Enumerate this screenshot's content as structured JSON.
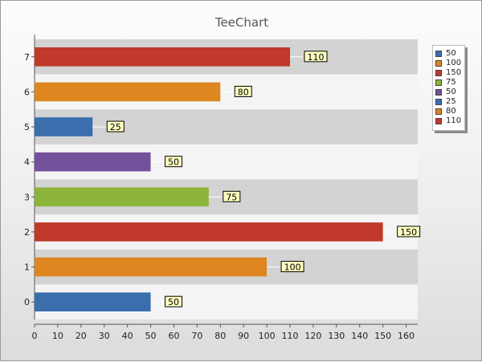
{
  "chart_data": {
    "type": "bar",
    "orientation": "horizontal",
    "title": "TeeChart",
    "xlabel": "",
    "ylabel": "",
    "categories": [
      "0",
      "1",
      "2",
      "3",
      "4",
      "5",
      "6",
      "7"
    ],
    "values": [
      50,
      100,
      150,
      75,
      50,
      25,
      80,
      110
    ],
    "bar_colors": [
      "#3a6ead",
      "#de861f",
      "#c0392b",
      "#8db43a",
      "#73529b",
      "#3a6ead",
      "#de861f",
      "#c0392b"
    ],
    "data_labels": [
      "50",
      "100",
      "150",
      "75",
      "50",
      "25",
      "80",
      "110"
    ],
    "xlim": [
      0,
      165
    ],
    "x_ticks": [
      0,
      10,
      20,
      30,
      40,
      50,
      60,
      70,
      80,
      90,
      100,
      110,
      120,
      130,
      140,
      150,
      160
    ],
    "x_tick_labels": [
      "0",
      "10",
      "20",
      "30",
      "40",
      "50",
      "60",
      "70",
      "80",
      "90",
      "100",
      "110",
      "120",
      "130",
      "140",
      "150",
      "160"
    ],
    "grid": false,
    "row_banding": [
      "#f4f4f4",
      "#d3d3d3"
    ],
    "legend": {
      "placement": "right",
      "entries": [
        {
          "label": "50",
          "color": "#3a6ead"
        },
        {
          "label": "100",
          "color": "#de861f"
        },
        {
          "label": "150",
          "color": "#c0392b"
        },
        {
          "label": "75",
          "color": "#8db43a"
        },
        {
          "label": "50",
          "color": "#73529b"
        },
        {
          "label": "25",
          "color": "#3a6ead"
        },
        {
          "label": "80",
          "color": "#de861f"
        },
        {
          "label": "110",
          "color": "#c0392b"
        }
      ]
    }
  }
}
